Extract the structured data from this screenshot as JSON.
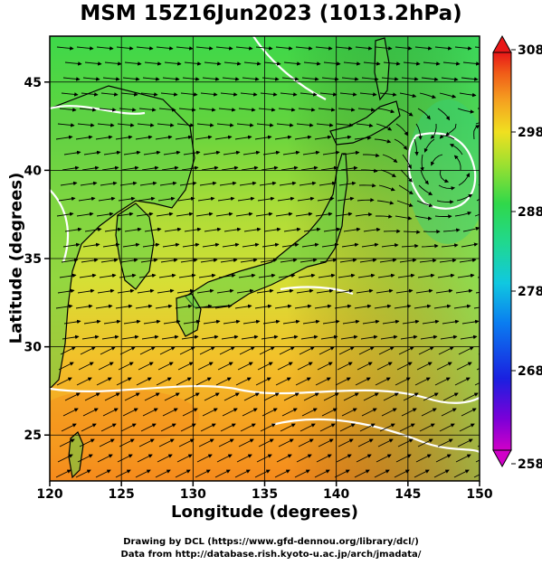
{
  "title": "MSM 15Z16Jun2023 (1013.2hPa)",
  "x_axis": {
    "label": "Longitude (degrees)",
    "range": [
      120,
      150
    ],
    "ticks": [
      "120",
      "125",
      "130",
      "135",
      "140",
      "145",
      "150"
    ]
  },
  "y_axis": {
    "label": "Latitude  (degrees)",
    "range": [
      22.4,
      47.6
    ],
    "ticks": [
      "25",
      "30",
      "35",
      "40",
      "45"
    ]
  },
  "colorbar": {
    "ticks": [
      "308",
      "298",
      "288",
      "278",
      "268",
      "258"
    ],
    "range": [
      258,
      308
    ]
  },
  "credits": {
    "line1": "Drawing by DCL (https://www.gfd-dennou.org/library/dcl/)",
    "line2": "Data from http://database.rish.kyoto-u.ac.jp/arch/jmadata/"
  },
  "colors": {
    "warm_south": "#f5a020",
    "mid_yellow": "#cfe23a",
    "north_green": "#3dd84a",
    "streamline": "#000000",
    "isotherm": "#ffffff"
  }
}
